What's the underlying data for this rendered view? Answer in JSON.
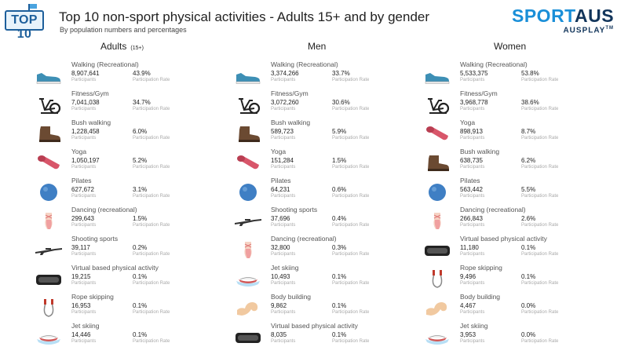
{
  "badge_text": "TOP 10",
  "title": "Top 10 non-sport physical activities - Adults 15+ and by gender",
  "subtitle": "By population numbers and percentages",
  "logo": {
    "line1_a": "SPORT",
    "line1_b": "AUS",
    "line2": "AUSPLAY",
    "tm": "TM"
  },
  "participants_label": "Participants",
  "rate_label": "Participation Rate",
  "icon_colors": {
    "shoe": "#3d8fb5",
    "bike": "#222222",
    "boot": "#6b4a32",
    "mat": "#d8566a",
    "ball": "#3f7fc4",
    "ballet": "#f0a0a0",
    "rifle": "#333333",
    "vr": "#222222",
    "rope": "#c0392b",
    "jetski": "#d05858",
    "arm": "#f1c9a0"
  },
  "columns": [
    {
      "header": "Adults",
      "header_sup": "(15+)",
      "rows": [
        {
          "activity": "Walking (Recreational)",
          "participants": "8,907,641",
          "rate": "43.9%",
          "icon": "shoe"
        },
        {
          "activity": "Fitness/Gym",
          "participants": "7,041,038",
          "rate": "34.7%",
          "icon": "bike"
        },
        {
          "activity": "Bush walking",
          "participants": "1,228,458",
          "rate": "6.0%",
          "icon": "boot"
        },
        {
          "activity": "Yoga",
          "participants": "1,050,197",
          "rate": "5.2%",
          "icon": "mat"
        },
        {
          "activity": "Pilates",
          "participants": "627,672",
          "rate": "3.1%",
          "icon": "ball"
        },
        {
          "activity": "Dancing (recreational)",
          "participants": "299,643",
          "rate": "1.5%",
          "icon": "ballet"
        },
        {
          "activity": "Shooting sports",
          "participants": "39,117",
          "rate": "0.2%",
          "icon": "rifle"
        },
        {
          "activity": "Virtual based physical activity",
          "participants": "19,215",
          "rate": "0.1%",
          "icon": "vr"
        },
        {
          "activity": "Rope skipping",
          "participants": "16,953",
          "rate": "0.1%",
          "icon": "rope"
        },
        {
          "activity": "Jet skiing",
          "participants": "14,446",
          "rate": "0.1%",
          "icon": "jetski"
        }
      ]
    },
    {
      "header": "Men",
      "header_sup": "",
      "rows": [
        {
          "activity": "Walking (Recreational)",
          "participants": "3,374,266",
          "rate": "33.7%",
          "icon": "shoe"
        },
        {
          "activity": "Fitness/Gym",
          "participants": "3,072,260",
          "rate": "30.6%",
          "icon": "bike"
        },
        {
          "activity": "Bush walking",
          "participants": "589,723",
          "rate": "5.9%",
          "icon": "boot"
        },
        {
          "activity": "Yoga",
          "participants": "151,284",
          "rate": "1.5%",
          "icon": "mat"
        },
        {
          "activity": "Pilates",
          "participants": "64,231",
          "rate": "0.6%",
          "icon": "ball"
        },
        {
          "activity": "Shooting sports",
          "participants": "37,696",
          "rate": "0.4%",
          "icon": "rifle"
        },
        {
          "activity": "Dancing (recreational)",
          "participants": "32,800",
          "rate": "0.3%",
          "icon": "ballet"
        },
        {
          "activity": "Jet skiing",
          "participants": "10,493",
          "rate": "0.1%",
          "icon": "jetski"
        },
        {
          "activity": "Body building",
          "participants": "9,862",
          "rate": "0.1%",
          "icon": "arm"
        },
        {
          "activity": "Virtual based physical activity",
          "participants": "8,035",
          "rate": "0.1%",
          "icon": "vr"
        }
      ]
    },
    {
      "header": "Women",
      "header_sup": "",
      "rows": [
        {
          "activity": "Walking (Recreational)",
          "participants": "5,533,375",
          "rate": "53.8%",
          "icon": "shoe"
        },
        {
          "activity": "Fitness/Gym",
          "participants": "3,968,778",
          "rate": "38.6%",
          "icon": "bike"
        },
        {
          "activity": "Yoga",
          "participants": "898,913",
          "rate": "8.7%",
          "icon": "mat"
        },
        {
          "activity": "Bush walking",
          "participants": "638,735",
          "rate": "6.2%",
          "icon": "boot"
        },
        {
          "activity": "Pilates",
          "participants": "563,442",
          "rate": "5.5%",
          "icon": "ball"
        },
        {
          "activity": "Dancing (recreational)",
          "participants": "266,843",
          "rate": "2.6%",
          "icon": "ballet"
        },
        {
          "activity": "Virtual based physical activity",
          "participants": "11,180",
          "rate": "0.1%",
          "icon": "vr"
        },
        {
          "activity": "Rope skipping",
          "participants": "9,496",
          "rate": "0.1%",
          "icon": "rope"
        },
        {
          "activity": "Body building",
          "participants": "4,467",
          "rate": "0.0%",
          "icon": "arm"
        },
        {
          "activity": "Jet skiing",
          "participants": "3,953",
          "rate": "0.0%",
          "icon": "jetski"
        }
      ]
    }
  ]
}
